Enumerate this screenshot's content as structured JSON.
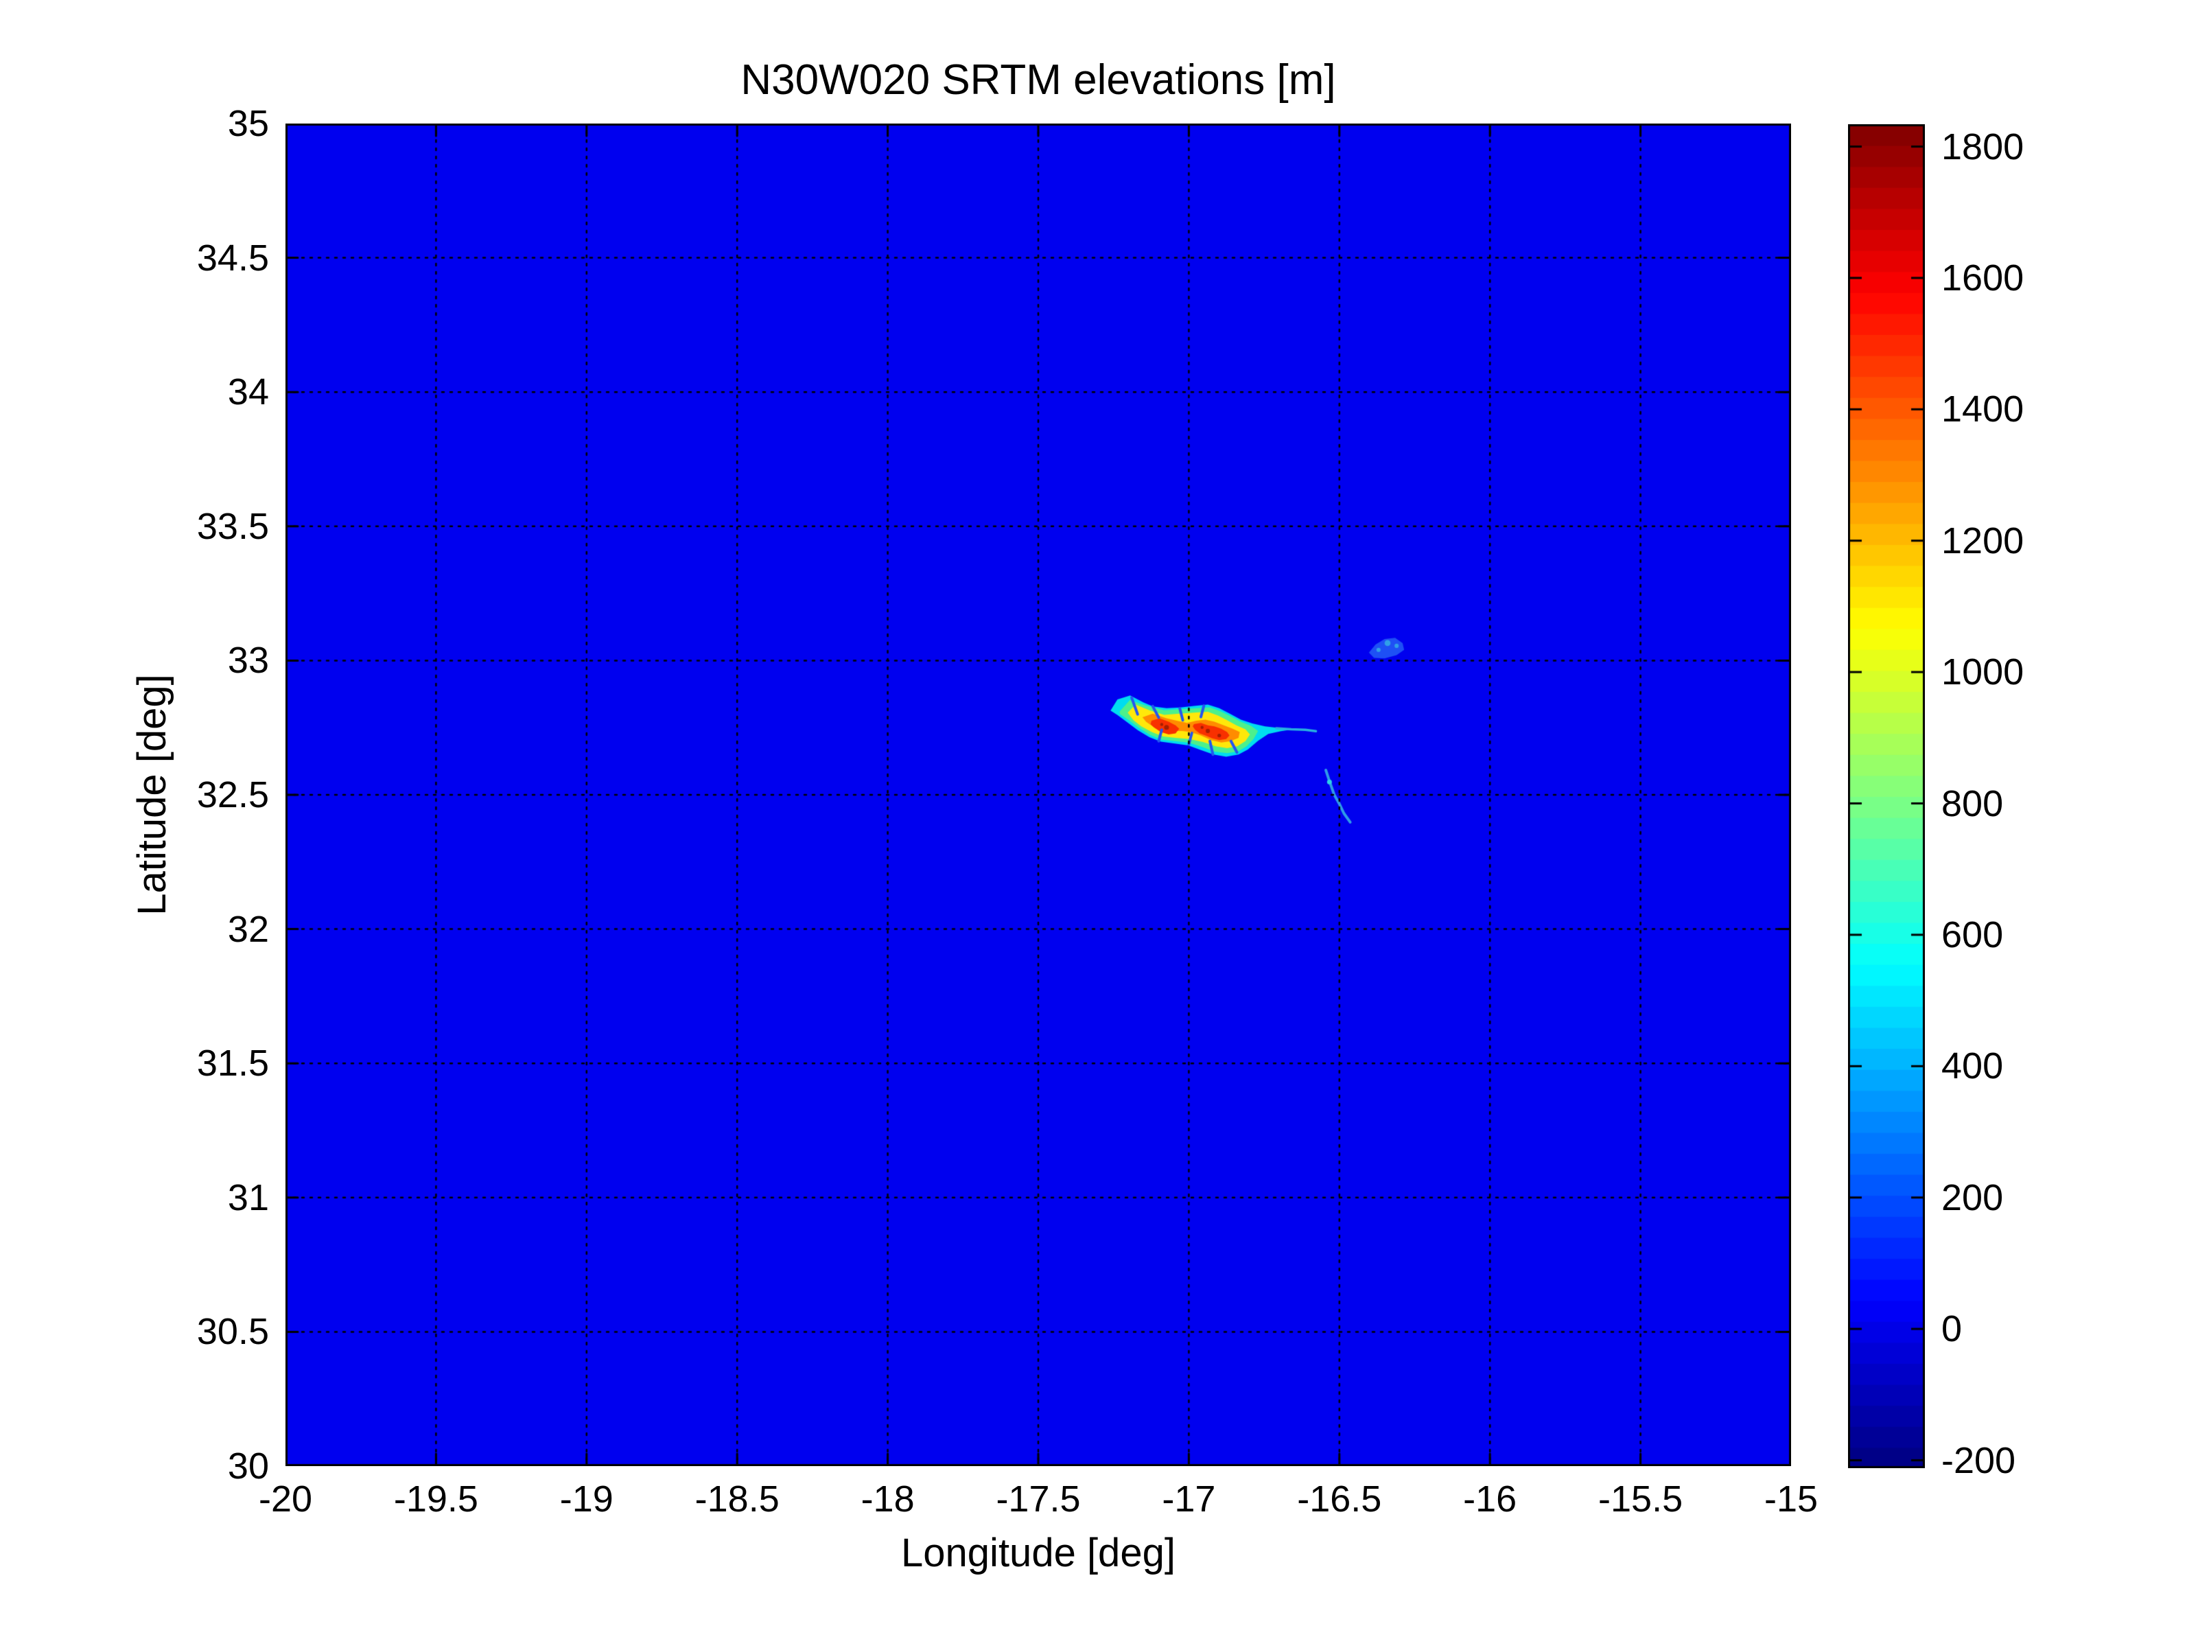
{
  "chart_data": {
    "type": "heatmap",
    "title": "N30W020 SRTM elevations [m]",
    "xlabel": "Longitude [deg]",
    "ylabel": "Latitude [deg]",
    "xlim": [
      -20,
      -15
    ],
    "ylim": [
      30,
      35
    ],
    "xtick_values": [
      -20,
      -19.5,
      -19,
      -18.5,
      -18,
      -17.5,
      -17,
      -16.5,
      -16,
      -15.5,
      -15
    ],
    "xtick_labels": [
      "-20",
      "-19.5",
      "-19",
      "-18.5",
      "-18",
      "-17.5",
      "-17",
      "-16.5",
      "-16",
      "-15.5",
      "-15"
    ],
    "ytick_values": [
      30,
      30.5,
      31,
      31.5,
      32,
      32.5,
      33,
      33.5,
      34,
      34.5,
      35
    ],
    "ytick_labels": [
      "30",
      "30.5",
      "31",
      "31.5",
      "32",
      "32.5",
      "33",
      "33.5",
      "34",
      "34.5",
      "35"
    ],
    "grid": true,
    "grid_style": {
      "color": "#000000",
      "dash": [
        3,
        9
      ],
      "width": 2.5
    },
    "tick_style": {
      "len": 18,
      "width": 3
    },
    "colormap": "jet",
    "colormap_steps": 64,
    "caxis": [
      -212,
      1834
    ],
    "colorbar_tick_values": [
      -200,
      0,
      200,
      400,
      600,
      800,
      1000,
      1200,
      1400,
      1600,
      1800
    ],
    "colorbar_tick_labels": [
      "-200",
      "0",
      "200",
      "400",
      "600",
      "800",
      "1000",
      "1200",
      "1400",
      "1600",
      "1800"
    ],
    "ocean_elevation_m": 0,
    "ocean_color": "#0000EF",
    "features": [
      {
        "name": "madeira-coast-lowland",
        "kind": "polygon",
        "color": "#00DCF0",
        "points": [
          [
            -17.26,
            32.814
          ],
          [
            -17.237,
            32.855
          ],
          [
            -17.195,
            32.87
          ],
          [
            -17.15,
            32.844
          ],
          [
            -17.119,
            32.829
          ],
          [
            -17.074,
            32.823
          ],
          [
            -17.028,
            32.825
          ],
          [
            -16.983,
            32.831
          ],
          [
            -16.937,
            32.836
          ],
          [
            -16.899,
            32.823
          ],
          [
            -16.865,
            32.803
          ],
          [
            -16.827,
            32.78
          ],
          [
            -16.789,
            32.766
          ],
          [
            -16.747,
            32.755
          ],
          [
            -16.702,
            32.749
          ],
          [
            -16.652,
            32.744
          ],
          [
            -16.694,
            32.737
          ],
          [
            -16.736,
            32.727
          ],
          [
            -16.77,
            32.701
          ],
          [
            -16.804,
            32.669
          ],
          [
            -16.835,
            32.65
          ],
          [
            -16.876,
            32.642
          ],
          [
            -16.918,
            32.65
          ],
          [
            -16.96,
            32.667
          ],
          [
            -17.002,
            32.684
          ],
          [
            -17.047,
            32.691
          ],
          [
            -17.093,
            32.698
          ],
          [
            -17.131,
            32.715
          ],
          [
            -17.169,
            32.74
          ],
          [
            -17.207,
            32.772
          ],
          [
            -17.237,
            32.797
          ]
        ]
      },
      {
        "name": "madeira-midland-green",
        "kind": "polygon",
        "color": "#4DF08C",
        "points": [
          [
            -17.23,
            32.81
          ],
          [
            -17.196,
            32.853
          ],
          [
            -17.142,
            32.832
          ],
          [
            -17.082,
            32.815
          ],
          [
            -17.029,
            32.819
          ],
          [
            -16.975,
            32.823
          ],
          [
            -16.93,
            32.826
          ],
          [
            -16.896,
            32.812
          ],
          [
            -16.861,
            32.793
          ],
          [
            -16.827,
            32.772
          ],
          [
            -16.793,
            32.757
          ],
          [
            -16.77,
            32.738
          ],
          [
            -16.785,
            32.708
          ],
          [
            -16.808,
            32.681
          ],
          [
            -16.837,
            32.661
          ],
          [
            -16.873,
            32.655
          ],
          [
            -16.915,
            32.661
          ],
          [
            -16.956,
            32.678
          ],
          [
            -17.0,
            32.694
          ],
          [
            -17.046,
            32.7
          ],
          [
            -17.091,
            32.706
          ],
          [
            -17.129,
            32.723
          ],
          [
            -17.165,
            32.749
          ],
          [
            -17.199,
            32.778
          ],
          [
            -17.228,
            32.8
          ]
        ]
      },
      {
        "name": "madeira-upland-yellow",
        "kind": "polygon",
        "color": "#FFE80A",
        "points": [
          [
            -17.203,
            32.806
          ],
          [
            -17.177,
            32.836
          ],
          [
            -17.131,
            32.815
          ],
          [
            -17.082,
            32.798
          ],
          [
            -17.032,
            32.802
          ],
          [
            -16.983,
            32.806
          ],
          [
            -16.937,
            32.809
          ],
          [
            -16.903,
            32.795
          ],
          [
            -16.873,
            32.778
          ],
          [
            -16.842,
            32.759
          ],
          [
            -16.812,
            32.744
          ],
          [
            -16.797,
            32.725
          ],
          [
            -16.812,
            32.7
          ],
          [
            -16.839,
            32.681
          ],
          [
            -16.873,
            32.674
          ],
          [
            -16.911,
            32.681
          ],
          [
            -16.953,
            32.697
          ],
          [
            -16.998,
            32.708
          ],
          [
            -17.044,
            32.712
          ],
          [
            -17.085,
            32.717
          ],
          [
            -17.123,
            32.734
          ],
          [
            -17.158,
            32.755
          ],
          [
            -17.184,
            32.778
          ]
        ]
      },
      {
        "name": "madeira-highland-orange",
        "kind": "polygon",
        "color": "#FF8C00",
        "points": [
          [
            -17.154,
            32.789
          ],
          [
            -17.12,
            32.802
          ],
          [
            -17.074,
            32.785
          ],
          [
            -17.04,
            32.776
          ],
          [
            -17.006,
            32.768
          ],
          [
            -16.975,
            32.776
          ],
          [
            -16.945,
            32.78
          ],
          [
            -16.915,
            32.772
          ],
          [
            -16.884,
            32.759
          ],
          [
            -16.854,
            32.746
          ],
          [
            -16.831,
            32.734
          ],
          [
            -16.835,
            32.712
          ],
          [
            -16.861,
            32.7
          ],
          [
            -16.892,
            32.695
          ],
          [
            -16.926,
            32.704
          ],
          [
            -16.96,
            32.721
          ],
          [
            -16.994,
            32.734
          ],
          [
            -17.021,
            32.738
          ],
          [
            -17.051,
            32.738
          ],
          [
            -17.085,
            32.742
          ],
          [
            -17.12,
            32.755
          ],
          [
            -17.142,
            32.772
          ]
        ]
      },
      {
        "name": "paul-da-serra-red-west",
        "kind": "polygon",
        "color": "#F83000",
        "points": [
          [
            -17.124,
            32.776
          ],
          [
            -17.097,
            32.785
          ],
          [
            -17.067,
            32.772
          ],
          [
            -17.044,
            32.759
          ],
          [
            -17.032,
            32.746
          ],
          [
            -17.044,
            32.729
          ],
          [
            -17.067,
            32.725
          ],
          [
            -17.093,
            32.734
          ],
          [
            -17.116,
            32.751
          ],
          [
            -17.127,
            32.763
          ]
        ]
      },
      {
        "name": "pico-ruivo-red-east",
        "kind": "polygon",
        "color": "#F83000",
        "points": [
          [
            -16.983,
            32.763
          ],
          [
            -16.96,
            32.768
          ],
          [
            -16.937,
            32.759
          ],
          [
            -16.915,
            32.755
          ],
          [
            -16.892,
            32.746
          ],
          [
            -16.873,
            32.734
          ],
          [
            -16.865,
            32.721
          ],
          [
            -16.876,
            32.708
          ],
          [
            -16.899,
            32.704
          ],
          [
            -16.922,
            32.71
          ],
          [
            -16.945,
            32.721
          ],
          [
            -16.964,
            32.729
          ],
          [
            -16.979,
            32.742
          ],
          [
            -16.987,
            32.755
          ]
        ]
      },
      {
        "name": "madeira-summit-spots",
        "kind": "spots",
        "color": "#A51E00",
        "spots": [
          [
            -17.074,
            32.751,
            0.008
          ],
          [
            -16.937,
            32.738,
            0.007
          ],
          [
            -16.899,
            32.721,
            0.006
          ],
          [
            -16.956,
            32.751,
            0.005
          ],
          [
            -17.09,
            32.762,
            0.005
          ]
        ]
      },
      {
        "name": "madeira-valley-streaks",
        "kind": "lines",
        "color": "#2356F0",
        "width": 4,
        "lines": [
          [
            [
              -17.19,
              32.862
            ],
            [
              -17.17,
              32.8
            ]
          ],
          [
            [
              -17.12,
              32.83
            ],
            [
              -17.1,
              32.788
            ]
          ],
          [
            [
              -17.03,
              32.822
            ],
            [
              -17.02,
              32.778
            ]
          ],
          [
            [
              -16.95,
              32.832
            ],
            [
              -16.96,
              32.79
            ]
          ],
          [
            [
              -17.1,
              32.7
            ],
            [
              -17.09,
              32.742
            ]
          ],
          [
            [
              -17.0,
              32.688
            ],
            [
              -16.99,
              32.73
            ]
          ],
          [
            [
              -16.92,
              32.65
            ],
            [
              -16.93,
              32.7
            ]
          ],
          [
            [
              -16.84,
              32.658
            ],
            [
              -16.86,
              32.7
            ]
          ]
        ]
      },
      {
        "name": "ponta-sao-lourenco-tail",
        "kind": "line",
        "color": "#28B0E0",
        "width": 3.5,
        "points": [
          [
            -16.71,
            32.748
          ],
          [
            -16.66,
            32.744
          ],
          [
            -16.613,
            32.742
          ],
          [
            -16.578,
            32.737
          ]
        ]
      },
      {
        "name": "porto-santo",
        "kind": "polygon",
        "color": "#1E50F5",
        "points": [
          [
            -16.402,
            33.03
          ],
          [
            -16.38,
            33.06
          ],
          [
            -16.35,
            33.08
          ],
          [
            -16.315,
            33.085
          ],
          [
            -16.29,
            33.065
          ],
          [
            -16.285,
            33.04
          ],
          [
            -16.31,
            33.02
          ],
          [
            -16.35,
            33.008
          ],
          [
            -16.385,
            33.01
          ]
        ]
      },
      {
        "name": "porto-santo-highlights",
        "kind": "spots",
        "color": "#30A0E8",
        "spots": [
          [
            -16.34,
            33.065,
            0.01
          ],
          [
            -16.31,
            33.055,
            0.007
          ],
          [
            -16.37,
            33.04,
            0.007
          ]
        ]
      },
      {
        "name": "ilhas-desertas",
        "kind": "line",
        "color": "#2F9BE8",
        "width": 4,
        "points": [
          [
            -16.545,
            32.592
          ],
          [
            -16.533,
            32.551
          ],
          [
            -16.517,
            32.5
          ],
          [
            -16.499,
            32.464
          ],
          [
            -16.485,
            32.431
          ],
          [
            -16.464,
            32.398
          ]
        ]
      },
      {
        "name": "desertas-highlight",
        "kind": "spots",
        "color": "#2ED0E8",
        "spots": [
          [
            -16.533,
            32.548,
            0.008
          ]
        ]
      }
    ]
  }
}
